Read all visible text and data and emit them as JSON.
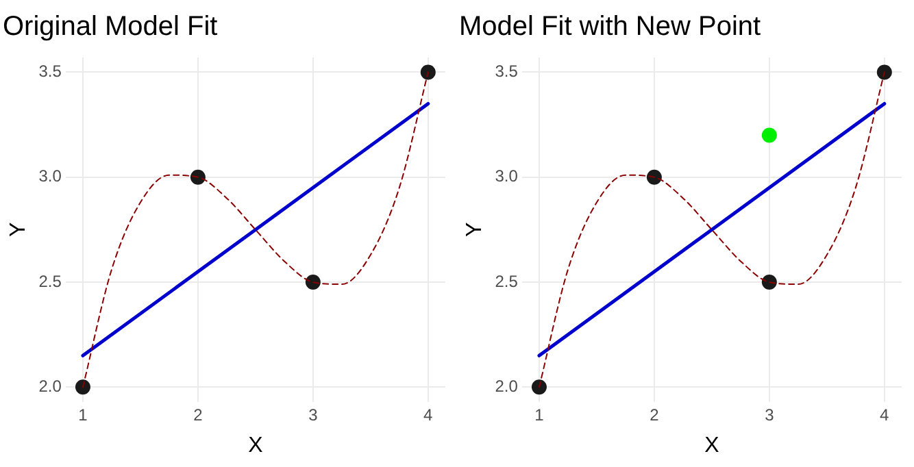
{
  "chart_data": [
    {
      "type": "scatter",
      "title": "Original Model Fit",
      "xlabel": "X",
      "ylabel": "Y",
      "xlim": [
        0.85,
        4.15
      ],
      "ylim": [
        1.93,
        3.57
      ],
      "xticks": [
        1,
        2,
        3,
        4
      ],
      "yticks": [
        {
          "value": 2,
          "label": "2.0"
        },
        {
          "value": 2.5,
          "label": "2.5"
        },
        {
          "value": 3,
          "label": "3.0"
        },
        {
          "value": 3.5,
          "label": "3.5"
        }
      ],
      "grid": true,
      "legend": false,
      "series": [
        {
          "type": "line",
          "color": "#8b0000",
          "line_style": "dashed",
          "marker": "none",
          "x": [
            1,
            1.25,
            1.5,
            1.75,
            2,
            2.25,
            2.5,
            2.75,
            3,
            3.25,
            3.5,
            3.75,
            4
          ],
          "values": [
            2,
            2.56,
            2.88,
            3.01,
            3,
            2.9,
            2.75,
            2.6,
            2.5,
            2.49,
            2.63,
            2.95,
            3.5
          ]
        },
        {
          "type": "line",
          "color": "#0000cd",
          "line_style": "solid",
          "marker": "none",
          "x": [
            1,
            4
          ],
          "values": [
            2.15,
            3.35
          ]
        },
        {
          "type": "scatter",
          "color": "#1a1a1a",
          "marker": "circle",
          "x": [
            1,
            2,
            3,
            4
          ],
          "values": [
            2,
            3,
            2.5,
            3.5
          ]
        }
      ]
    },
    {
      "type": "scatter",
      "title": "Model Fit with New Point",
      "xlabel": "X",
      "ylabel": "Y",
      "xlim": [
        0.85,
        4.15
      ],
      "ylim": [
        1.93,
        3.57
      ],
      "xticks": [
        1,
        2,
        3,
        4
      ],
      "yticks": [
        {
          "value": 2,
          "label": "2.0"
        },
        {
          "value": 2.5,
          "label": "2.5"
        },
        {
          "value": 3,
          "label": "3.0"
        },
        {
          "value": 3.5,
          "label": "3.5"
        }
      ],
      "grid": true,
      "legend": false,
      "series": [
        {
          "type": "line",
          "color": "#8b0000",
          "line_style": "dashed",
          "marker": "none",
          "x": [
            1,
            1.25,
            1.5,
            1.75,
            2,
            2.25,
            2.5,
            2.75,
            3,
            3.25,
            3.5,
            3.75,
            4
          ],
          "values": [
            2,
            2.56,
            2.88,
            3.01,
            3,
            2.9,
            2.75,
            2.6,
            2.5,
            2.49,
            2.63,
            2.95,
            3.5
          ]
        },
        {
          "type": "line",
          "color": "#0000cd",
          "line_style": "solid",
          "marker": "none",
          "x": [
            1,
            4
          ],
          "values": [
            2.15,
            3.35
          ]
        },
        {
          "type": "scatter",
          "color": "#1a1a1a",
          "marker": "circle",
          "x": [
            1,
            2,
            3,
            4
          ],
          "values": [
            2,
            3,
            2.5,
            3.5
          ]
        },
        {
          "type": "scatter",
          "color": "#00ee00",
          "marker": "circle",
          "x": [
            3
          ],
          "values": [
            3.2
          ]
        }
      ]
    }
  ]
}
